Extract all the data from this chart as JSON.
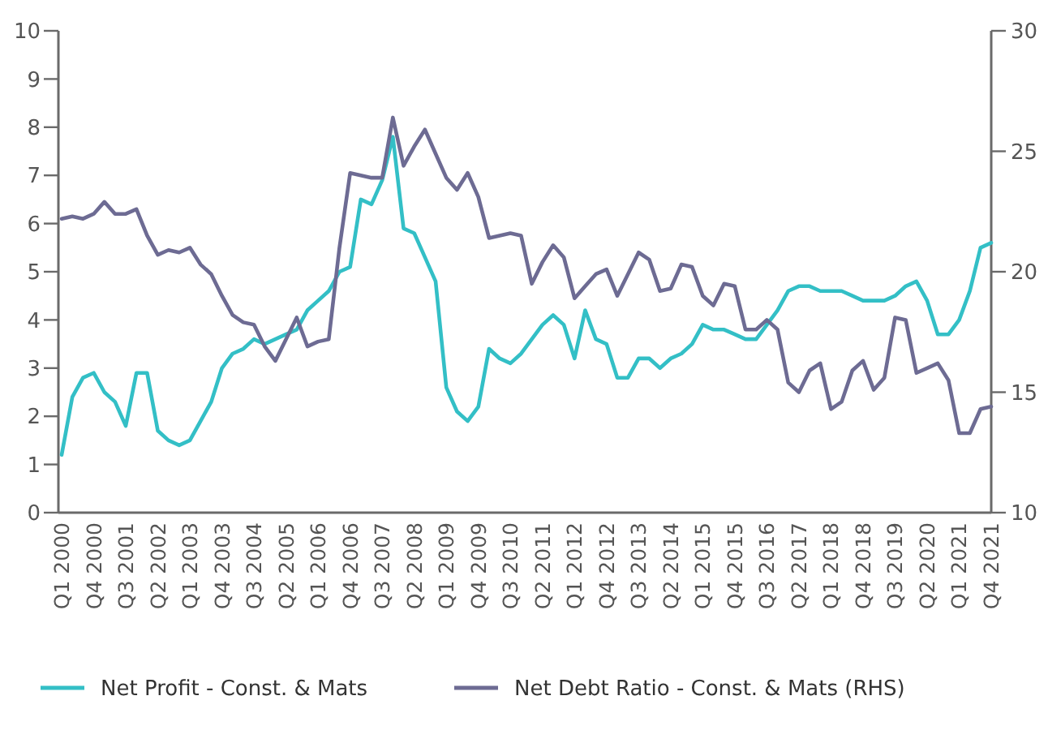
{
  "chart_data": {
    "type": "line",
    "categories": [
      "Q1 2000",
      null,
      null,
      "Q4 2000",
      null,
      null,
      "Q3 2001",
      null,
      null,
      "Q2 2002",
      null,
      null,
      "Q1 2003",
      null,
      null,
      "Q4 2003",
      null,
      null,
      "Q3 2004",
      null,
      null,
      "Q2 2005",
      null,
      null,
      "Q1 2006",
      null,
      null,
      "Q4 2006",
      null,
      null,
      "Q3 2007",
      null,
      null,
      "Q2 2008",
      null,
      null,
      "Q1 2009",
      null,
      null,
      "Q4 2009",
      null,
      null,
      "Q3 2010",
      null,
      null,
      "Q2 2011",
      null,
      null,
      "Q1 2012",
      null,
      null,
      "Q4 2012",
      null,
      null,
      "Q3 2013",
      null,
      null,
      "Q2 2014",
      null,
      null,
      "Q1 2015",
      null,
      null,
      "Q4 2015",
      null,
      null,
      "Q3 2016",
      null,
      null,
      "Q2 2017",
      null,
      null,
      "Q1 2018",
      null,
      null,
      "Q4 2018",
      null,
      null,
      "Q3 2019",
      null,
      null,
      "Q2 2020",
      null,
      null,
      "Q1 2021",
      null,
      null,
      "Q4 2021"
    ],
    "series": [
      {
        "name": "Net Profit - Const. & Mats",
        "color": "#33bfc6",
        "values": [
          1.2,
          2.4,
          2.8,
          2.9,
          2.5,
          2.3,
          1.8,
          2.9,
          2.9,
          1.7,
          1.5,
          1.4,
          1.5,
          1.9,
          2.3,
          3.0,
          3.3,
          3.4,
          3.6,
          3.5,
          3.6,
          3.7,
          3.8,
          4.2,
          4.4,
          4.6,
          5.0,
          5.1,
          6.5,
          6.4,
          6.9,
          7.8,
          5.9,
          5.8,
          5.3,
          4.8,
          2.6,
          2.1,
          1.9,
          2.2,
          3.4,
          3.2,
          3.1,
          3.3,
          3.6,
          3.9,
          4.1,
          3.9,
          3.2,
          4.2,
          3.6,
          3.5,
          2.8,
          2.8,
          3.2,
          3.2,
          3.0,
          3.2,
          3.3,
          3.5,
          3.9,
          3.8,
          3.8,
          3.7,
          3.6,
          3.6,
          3.9,
          4.2,
          4.6,
          4.7,
          4.7,
          4.6,
          4.6,
          4.6,
          4.5,
          4.4,
          4.4,
          4.4,
          4.5,
          4.7,
          4.8,
          4.4,
          3.7,
          3.7,
          4.0,
          4.6,
          5.5,
          5.6
        ]
      },
      {
        "name": "Net Debt Ratio - Const. & Mats (RHS)",
        "color": "#6d6b93",
        "axis": "y2",
        "values": [
          22.2,
          22.3,
          22.2,
          22.4,
          22.9,
          22.4,
          22.4,
          22.6,
          21.5,
          20.7,
          20.9,
          20.8,
          21.0,
          20.3,
          19.9,
          19.0,
          18.2,
          17.9,
          17.8,
          16.9,
          16.3,
          17.2,
          18.1,
          16.9,
          17.1,
          17.2,
          21.0,
          24.1,
          24.0,
          23.9,
          23.9,
          26.4,
          24.4,
          25.2,
          25.9,
          24.9,
          23.9,
          23.4,
          24.1,
          23.1,
          21.4,
          21.5,
          21.6,
          21.5,
          19.5,
          20.4,
          21.1,
          20.6,
          18.9,
          19.4,
          19.9,
          20.1,
          19.0,
          19.9,
          20.8,
          20.5,
          19.2,
          19.3,
          20.3,
          20.2,
          19.0,
          18.6,
          19.5,
          19.4,
          17.6,
          17.6,
          18.0,
          17.6,
          15.4,
          15.0,
          15.9,
          16.2,
          14.3,
          14.6,
          15.9,
          16.3,
          15.1,
          15.6,
          18.1,
          18.0,
          15.8,
          16.0,
          16.2,
          15.5,
          13.3,
          13.3,
          14.3,
          14.4
        ]
      }
    ],
    "ylim": [
      0,
      10
    ],
    "yticks": [
      0,
      1,
      2,
      3,
      4,
      5,
      6,
      7,
      8,
      9,
      10
    ],
    "y2lim": [
      10,
      30
    ],
    "y2ticks": [
      10,
      15,
      20,
      25,
      30
    ],
    "legend": "bottom"
  }
}
